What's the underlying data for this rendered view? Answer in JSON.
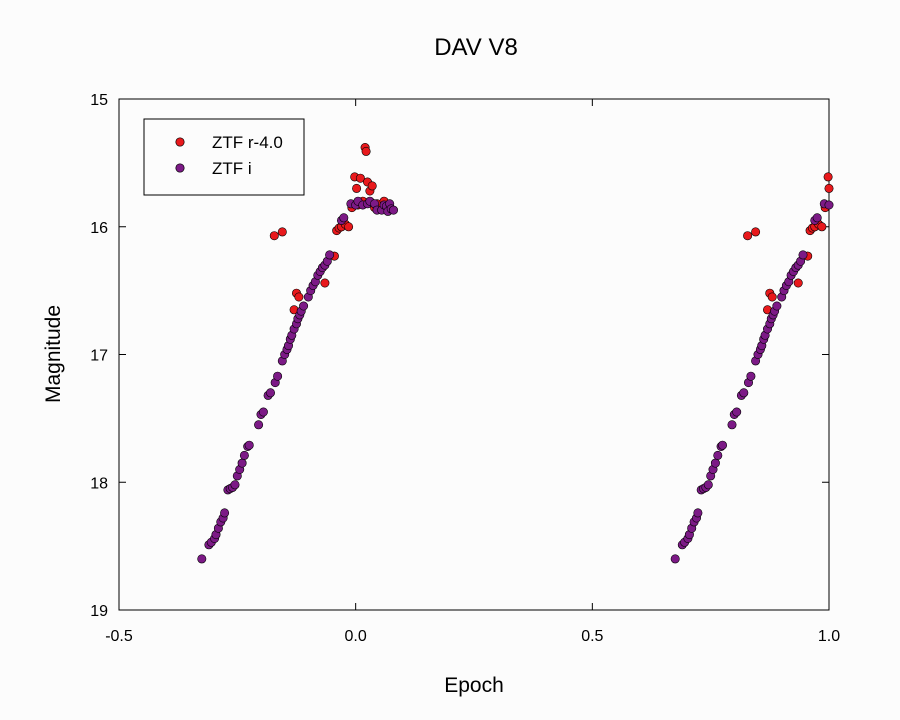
{
  "chart_data": {
    "type": "scatter",
    "title": "DAV V8",
    "xlabel": "Epoch",
    "ylabel": "Magnitude",
    "xlim": [
      -0.5,
      1.0
    ],
    "ylim": [
      15,
      19
    ],
    "y_inverted": true,
    "x_ticks": [
      -0.5,
      0.0,
      0.5,
      1.0
    ],
    "x_tick_labels": [
      "-0.5",
      "0.0",
      "0.5",
      "1.0"
    ],
    "y_ticks": [
      15,
      16,
      17,
      18,
      19
    ],
    "y_tick_labels": [
      "15",
      "16",
      "17",
      "18",
      "19"
    ],
    "grid": false,
    "legend_position": "top-left",
    "series": [
      {
        "name": "ZTF r-4.0",
        "color": "#e8191c",
        "points": [
          [
            -0.172,
            16.07
          ],
          [
            -0.155,
            16.04
          ],
          [
            -0.13,
            16.65
          ],
          [
            -0.125,
            16.52
          ],
          [
            -0.12,
            16.55
          ],
          [
            -0.065,
            16.44
          ],
          [
            -0.045,
            16.23
          ],
          [
            -0.04,
            16.03
          ],
          [
            -0.035,
            16.01
          ],
          [
            -0.03,
            16.0
          ],
          [
            -0.022,
            15.98
          ],
          [
            -0.015,
            16.0
          ],
          [
            -0.008,
            15.85
          ],
          [
            -0.002,
            15.61
          ],
          [
            0.002,
            15.7
          ],
          [
            0.005,
            15.83
          ],
          [
            0.01,
            15.62
          ],
          [
            0.015,
            15.8
          ],
          [
            0.02,
            15.38
          ],
          [
            0.022,
            15.41
          ],
          [
            0.025,
            15.65
          ],
          [
            0.03,
            15.72
          ],
          [
            0.035,
            15.68
          ],
          [
            0.04,
            15.85
          ],
          [
            0.045,
            15.82
          ],
          [
            0.06,
            15.8
          ],
          [
            0.828,
            16.07
          ],
          [
            0.845,
            16.04
          ],
          [
            0.87,
            16.65
          ],
          [
            0.875,
            16.52
          ],
          [
            0.88,
            16.55
          ],
          [
            0.935,
            16.44
          ],
          [
            0.955,
            16.23
          ],
          [
            0.96,
            16.03
          ],
          [
            0.965,
            16.01
          ],
          [
            0.97,
            16.0
          ],
          [
            0.978,
            15.98
          ],
          [
            0.985,
            16.0
          ],
          [
            0.992,
            15.85
          ],
          [
            0.998,
            15.61
          ],
          [
            1.0,
            15.7
          ]
        ]
      },
      {
        "name": "ZTF i",
        "color": "#7c1a86",
        "points": [
          [
            -0.325,
            18.6
          ],
          [
            -0.31,
            18.49
          ],
          [
            -0.305,
            18.47
          ],
          [
            -0.298,
            18.44
          ],
          [
            -0.295,
            18.41
          ],
          [
            -0.29,
            18.36
          ],
          [
            -0.285,
            18.31
          ],
          [
            -0.28,
            18.28
          ],
          [
            -0.277,
            18.24
          ],
          [
            -0.27,
            18.06
          ],
          [
            -0.265,
            18.05
          ],
          [
            -0.26,
            18.04
          ],
          [
            -0.255,
            18.02
          ],
          [
            -0.25,
            17.95
          ],
          [
            -0.245,
            17.9
          ],
          [
            -0.24,
            17.85
          ],
          [
            -0.235,
            17.79
          ],
          [
            -0.228,
            17.72
          ],
          [
            -0.225,
            17.71
          ],
          [
            -0.205,
            17.55
          ],
          [
            -0.2,
            17.47
          ],
          [
            -0.195,
            17.45
          ],
          [
            -0.185,
            17.32
          ],
          [
            -0.18,
            17.3
          ],
          [
            -0.17,
            17.22
          ],
          [
            -0.165,
            17.17
          ],
          [
            -0.155,
            17.05
          ],
          [
            -0.15,
            17.0
          ],
          [
            -0.145,
            16.96
          ],
          [
            -0.142,
            16.93
          ],
          [
            -0.138,
            16.88
          ],
          [
            -0.135,
            16.85
          ],
          [
            -0.13,
            16.8
          ],
          [
            -0.125,
            16.76
          ],
          [
            -0.122,
            16.72
          ],
          [
            -0.118,
            16.69
          ],
          [
            -0.115,
            16.66
          ],
          [
            -0.11,
            16.62
          ],
          [
            -0.1,
            16.55
          ],
          [
            -0.095,
            16.5
          ],
          [
            -0.09,
            16.46
          ],
          [
            -0.085,
            16.43
          ],
          [
            -0.08,
            16.38
          ],
          [
            -0.075,
            16.35
          ],
          [
            -0.07,
            16.32
          ],
          [
            -0.065,
            16.3
          ],
          [
            -0.06,
            16.27
          ],
          [
            -0.055,
            16.22
          ],
          [
            -0.03,
            15.95
          ],
          [
            -0.025,
            15.93
          ],
          [
            -0.01,
            15.82
          ],
          [
            0.0,
            15.83
          ],
          [
            0.005,
            15.8
          ],
          [
            0.015,
            15.83
          ],
          [
            0.025,
            15.82
          ],
          [
            0.03,
            15.8
          ],
          [
            0.04,
            15.82
          ],
          [
            0.045,
            15.87
          ],
          [
            0.055,
            15.87
          ],
          [
            0.06,
            15.83
          ],
          [
            0.065,
            15.84
          ],
          [
            0.068,
            15.88
          ],
          [
            0.072,
            15.82
          ],
          [
            0.075,
            15.86
          ],
          [
            0.08,
            15.87
          ],
          [
            0.675,
            18.6
          ],
          [
            0.69,
            18.49
          ],
          [
            0.695,
            18.47
          ],
          [
            0.702,
            18.44
          ],
          [
            0.705,
            18.41
          ],
          [
            0.71,
            18.36
          ],
          [
            0.715,
            18.31
          ],
          [
            0.72,
            18.28
          ],
          [
            0.723,
            18.24
          ],
          [
            0.73,
            18.06
          ],
          [
            0.735,
            18.05
          ],
          [
            0.74,
            18.04
          ],
          [
            0.745,
            18.02
          ],
          [
            0.75,
            17.95
          ],
          [
            0.755,
            17.9
          ],
          [
            0.76,
            17.85
          ],
          [
            0.765,
            17.79
          ],
          [
            0.772,
            17.72
          ],
          [
            0.775,
            17.71
          ],
          [
            0.795,
            17.55
          ],
          [
            0.8,
            17.47
          ],
          [
            0.805,
            17.45
          ],
          [
            0.815,
            17.32
          ],
          [
            0.82,
            17.3
          ],
          [
            0.83,
            17.22
          ],
          [
            0.835,
            17.17
          ],
          [
            0.845,
            17.05
          ],
          [
            0.85,
            17.0
          ],
          [
            0.855,
            16.96
          ],
          [
            0.858,
            16.93
          ],
          [
            0.862,
            16.88
          ],
          [
            0.865,
            16.85
          ],
          [
            0.87,
            16.8
          ],
          [
            0.875,
            16.76
          ],
          [
            0.878,
            16.72
          ],
          [
            0.882,
            16.69
          ],
          [
            0.885,
            16.66
          ],
          [
            0.89,
            16.62
          ],
          [
            0.9,
            16.55
          ],
          [
            0.905,
            16.5
          ],
          [
            0.91,
            16.46
          ],
          [
            0.915,
            16.43
          ],
          [
            0.92,
            16.38
          ],
          [
            0.925,
            16.35
          ],
          [
            0.93,
            16.32
          ],
          [
            0.935,
            16.3
          ],
          [
            0.94,
            16.27
          ],
          [
            0.945,
            16.22
          ],
          [
            0.97,
            15.95
          ],
          [
            0.975,
            15.93
          ],
          [
            0.99,
            15.82
          ],
          [
            1.0,
            15.83
          ]
        ]
      }
    ]
  }
}
